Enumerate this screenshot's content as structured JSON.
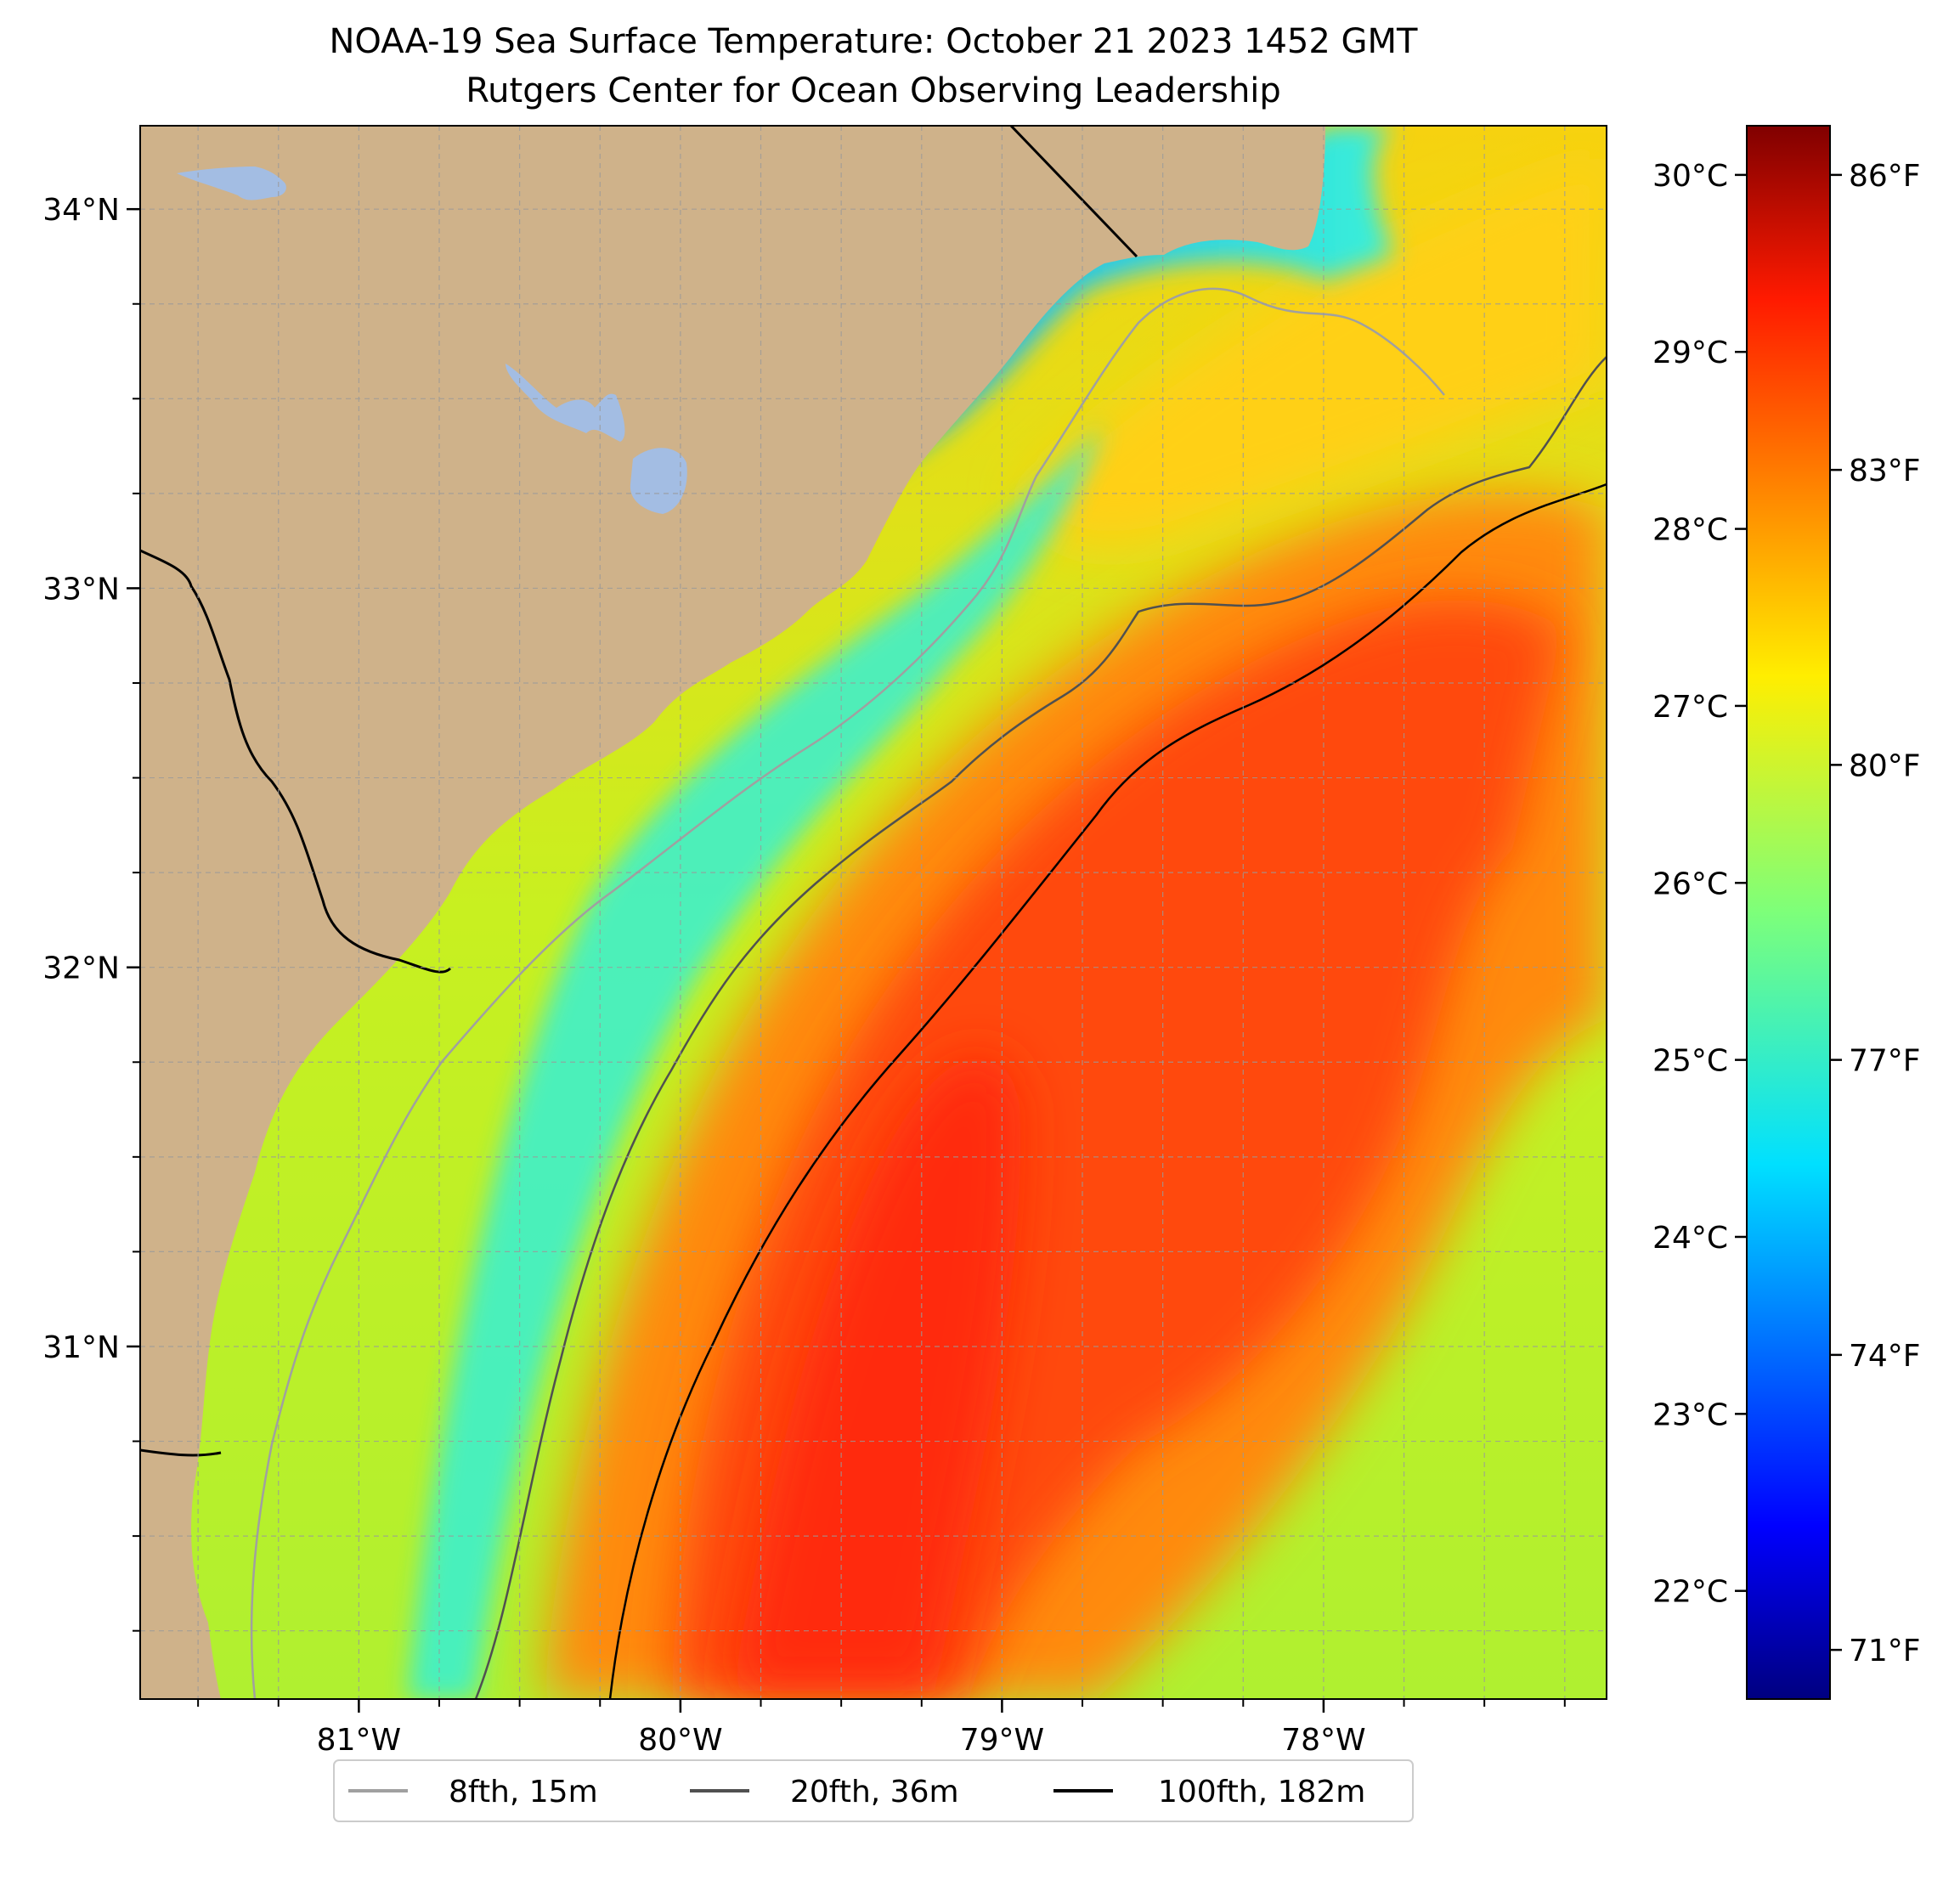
{
  "title": {
    "line1": "NOAA-19 Sea Surface Temperature: October 21 2023 1452 GMT",
    "line2": "Rutgers Center for Ocean Observing Leadership"
  },
  "colors": {
    "land": "#cfb28a",
    "lake": "#a3bde3",
    "grid": "#9a9a9a",
    "isobath_8fth": "#a0a0a0",
    "isobath_20fth": "#505050",
    "isobath_100fth": "#000000"
  },
  "map": {
    "lon_ticks": [
      {
        "value": -81,
        "label": "81°W"
      },
      {
        "value": -80,
        "label": "80°W"
      },
      {
        "value": -79,
        "label": "79°W"
      },
      {
        "value": -78,
        "label": "78°W"
      }
    ],
    "lat_ticks": [
      {
        "value": 34,
        "label": "34°N"
      },
      {
        "value": 33,
        "label": "33°N"
      },
      {
        "value": 32,
        "label": "32°N"
      },
      {
        "value": 31,
        "label": "31°N"
      }
    ],
    "lon_range": [
      -81.68,
      -77.12
    ],
    "lat_range": [
      30.07,
      34.22
    ]
  },
  "colorbar": {
    "celsius_ticks": [
      {
        "value": 22,
        "label": "22°C"
      },
      {
        "value": 23,
        "label": "23°C"
      },
      {
        "value": 24,
        "label": "24°C"
      },
      {
        "value": 25,
        "label": "25°C"
      },
      {
        "value": 26,
        "label": "26°C"
      },
      {
        "value": 27,
        "label": "27°C"
      },
      {
        "value": 28,
        "label": "28°C"
      },
      {
        "value": 29,
        "label": "29°C"
      },
      {
        "value": 30,
        "label": "30°C"
      }
    ],
    "fahrenheit_ticks": [
      {
        "value": 71,
        "label": "71°F"
      },
      {
        "value": 74,
        "label": "74°F"
      },
      {
        "value": 77,
        "label": "77°F"
      },
      {
        "value": 80,
        "label": "80°F"
      },
      {
        "value": 83,
        "label": "83°F"
      },
      {
        "value": 86,
        "label": "86°F"
      }
    ],
    "range_f": [
      70.5,
      86.5
    ]
  },
  "legend": {
    "placement": "bottom-center",
    "items": [
      {
        "label": "8fth, 15m",
        "color": "#a0a0a0"
      },
      {
        "label": "20fth, 36m",
        "color": "#505050"
      },
      {
        "label": "100fth, 182m",
        "color": "#000000"
      }
    ]
  }
}
